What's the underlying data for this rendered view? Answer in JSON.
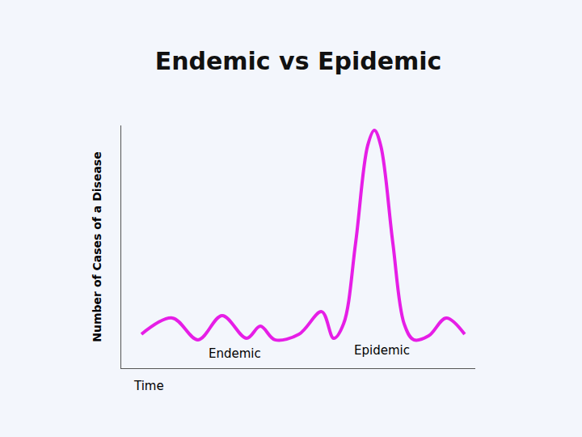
{
  "chart_data": {
    "type": "line",
    "title": "Endemic vs Epidemic",
    "x_label": "Time",
    "y_label": "Number of Cases of a Disease",
    "x": [
      5.7,
      14.4,
      21.7,
      28.5,
      35.4,
      39.3,
      43.4,
      50.2,
      56.6,
      60,
      62.8,
      66.2,
      69.6,
      71.5,
      73.3,
      76.7,
      79.9,
      82.6,
      86.8,
      91.8,
      97
    ],
    "values": [
      14,
      20.7,
      11.7,
      21.7,
      12.3,
      17.3,
      11.7,
      14,
      23.3,
      12.3,
      18.3,
      51.7,
      91.7,
      98,
      91.7,
      51.7,
      18.3,
      11.7,
      13.3,
      20.7,
      14
    ],
    "color": "#e61ee6",
    "xlim": [
      0,
      100
    ],
    "ylim": [
      0,
      100
    ],
    "xticks": [],
    "yticks": [],
    "tick_labels": false,
    "grid": false,
    "annotations": [
      "Endemic",
      "Epidemic"
    ]
  }
}
